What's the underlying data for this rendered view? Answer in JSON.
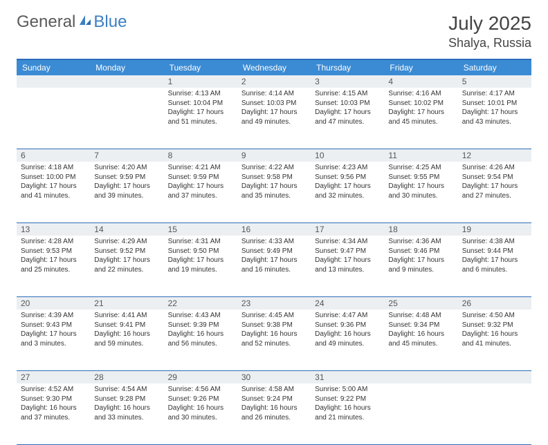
{
  "logo": {
    "general": "General",
    "blue": "Blue"
  },
  "title": {
    "month_year": "July 2025",
    "location": "Shalya, Russia"
  },
  "colors": {
    "header_bg": "#3b8bd4",
    "header_border": "#2a6db8",
    "daynum_bg": "#eceff2",
    "text": "#333333",
    "logo_gray": "#5a5a5a",
    "logo_blue": "#3b7fc4"
  },
  "day_headers": [
    "Sunday",
    "Monday",
    "Tuesday",
    "Wednesday",
    "Thursday",
    "Friday",
    "Saturday"
  ],
  "weeks": [
    [
      null,
      null,
      {
        "n": "1",
        "sr": "4:13 AM",
        "ss": "10:04 PM",
        "dl": "17 hours and 51 minutes."
      },
      {
        "n": "2",
        "sr": "4:14 AM",
        "ss": "10:03 PM",
        "dl": "17 hours and 49 minutes."
      },
      {
        "n": "3",
        "sr": "4:15 AM",
        "ss": "10:03 PM",
        "dl": "17 hours and 47 minutes."
      },
      {
        "n": "4",
        "sr": "4:16 AM",
        "ss": "10:02 PM",
        "dl": "17 hours and 45 minutes."
      },
      {
        "n": "5",
        "sr": "4:17 AM",
        "ss": "10:01 PM",
        "dl": "17 hours and 43 minutes."
      }
    ],
    [
      {
        "n": "6",
        "sr": "4:18 AM",
        "ss": "10:00 PM",
        "dl": "17 hours and 41 minutes."
      },
      {
        "n": "7",
        "sr": "4:20 AM",
        "ss": "9:59 PM",
        "dl": "17 hours and 39 minutes."
      },
      {
        "n": "8",
        "sr": "4:21 AM",
        "ss": "9:59 PM",
        "dl": "17 hours and 37 minutes."
      },
      {
        "n": "9",
        "sr": "4:22 AM",
        "ss": "9:58 PM",
        "dl": "17 hours and 35 minutes."
      },
      {
        "n": "10",
        "sr": "4:23 AM",
        "ss": "9:56 PM",
        "dl": "17 hours and 32 minutes."
      },
      {
        "n": "11",
        "sr": "4:25 AM",
        "ss": "9:55 PM",
        "dl": "17 hours and 30 minutes."
      },
      {
        "n": "12",
        "sr": "4:26 AM",
        "ss": "9:54 PM",
        "dl": "17 hours and 27 minutes."
      }
    ],
    [
      {
        "n": "13",
        "sr": "4:28 AM",
        "ss": "9:53 PM",
        "dl": "17 hours and 25 minutes."
      },
      {
        "n": "14",
        "sr": "4:29 AM",
        "ss": "9:52 PM",
        "dl": "17 hours and 22 minutes."
      },
      {
        "n": "15",
        "sr": "4:31 AM",
        "ss": "9:50 PM",
        "dl": "17 hours and 19 minutes."
      },
      {
        "n": "16",
        "sr": "4:33 AM",
        "ss": "9:49 PM",
        "dl": "17 hours and 16 minutes."
      },
      {
        "n": "17",
        "sr": "4:34 AM",
        "ss": "9:47 PM",
        "dl": "17 hours and 13 minutes."
      },
      {
        "n": "18",
        "sr": "4:36 AM",
        "ss": "9:46 PM",
        "dl": "17 hours and 9 minutes."
      },
      {
        "n": "19",
        "sr": "4:38 AM",
        "ss": "9:44 PM",
        "dl": "17 hours and 6 minutes."
      }
    ],
    [
      {
        "n": "20",
        "sr": "4:39 AM",
        "ss": "9:43 PM",
        "dl": "17 hours and 3 minutes."
      },
      {
        "n": "21",
        "sr": "4:41 AM",
        "ss": "9:41 PM",
        "dl": "16 hours and 59 minutes."
      },
      {
        "n": "22",
        "sr": "4:43 AM",
        "ss": "9:39 PM",
        "dl": "16 hours and 56 minutes."
      },
      {
        "n": "23",
        "sr": "4:45 AM",
        "ss": "9:38 PM",
        "dl": "16 hours and 52 minutes."
      },
      {
        "n": "24",
        "sr": "4:47 AM",
        "ss": "9:36 PM",
        "dl": "16 hours and 49 minutes."
      },
      {
        "n": "25",
        "sr": "4:48 AM",
        "ss": "9:34 PM",
        "dl": "16 hours and 45 minutes."
      },
      {
        "n": "26",
        "sr": "4:50 AM",
        "ss": "9:32 PM",
        "dl": "16 hours and 41 minutes."
      }
    ],
    [
      {
        "n": "27",
        "sr": "4:52 AM",
        "ss": "9:30 PM",
        "dl": "16 hours and 37 minutes."
      },
      {
        "n": "28",
        "sr": "4:54 AM",
        "ss": "9:28 PM",
        "dl": "16 hours and 33 minutes."
      },
      {
        "n": "29",
        "sr": "4:56 AM",
        "ss": "9:26 PM",
        "dl": "16 hours and 30 minutes."
      },
      {
        "n": "30",
        "sr": "4:58 AM",
        "ss": "9:24 PM",
        "dl": "16 hours and 26 minutes."
      },
      {
        "n": "31",
        "sr": "5:00 AM",
        "ss": "9:22 PM",
        "dl": "16 hours and 21 minutes."
      },
      null,
      null
    ]
  ],
  "labels": {
    "sunrise": "Sunrise:",
    "sunset": "Sunset:",
    "daylight": "Daylight:"
  }
}
